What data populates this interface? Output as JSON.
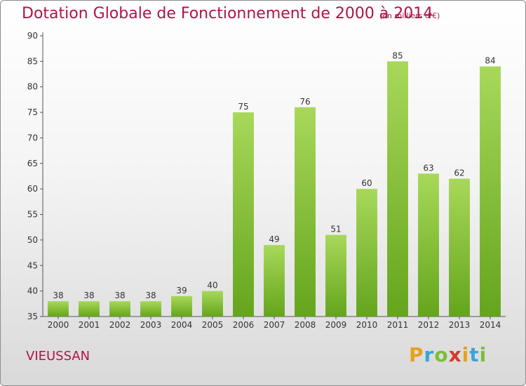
{
  "header": {
    "title": "Dotation Globale de Fonctionnement de 2000 à 2014",
    "subtitle": "(en milliers d'€)"
  },
  "footer": {
    "place": "VIEUSSAN",
    "logo": [
      "P",
      "r",
      "o",
      "x",
      "i",
      "t",
      "i"
    ],
    "logo_colors": [
      "#e8a21b",
      "#3aa4d8",
      "#7bbf35",
      "#d43b2b",
      "#e8a21b",
      "#3aa4d8",
      "#7bbf35"
    ]
  },
  "colors": {
    "bar_light": "#a8d85a",
    "bar_dark": "#64a51c",
    "axis": "#555555",
    "text": "#333333",
    "accent": "#b0134a"
  },
  "chart_data": {
    "type": "bar",
    "categories": [
      "2000",
      "2001",
      "2002",
      "2003",
      "2004",
      "2005",
      "2006",
      "2007",
      "2008",
      "2009",
      "2010",
      "2011",
      "2012",
      "2013",
      "2014"
    ],
    "values": [
      38,
      38,
      38,
      38,
      39,
      40,
      75,
      49,
      76,
      51,
      60,
      85,
      63,
      62,
      84
    ],
    "title": "Dotation Globale de Fonctionnement de 2000 à 2014",
    "ylim": [
      35,
      90
    ],
    "yticks": [
      35,
      40,
      45,
      50,
      55,
      60,
      65,
      70,
      75,
      80,
      85,
      90
    ],
    "grid": false,
    "data_labels": true
  }
}
